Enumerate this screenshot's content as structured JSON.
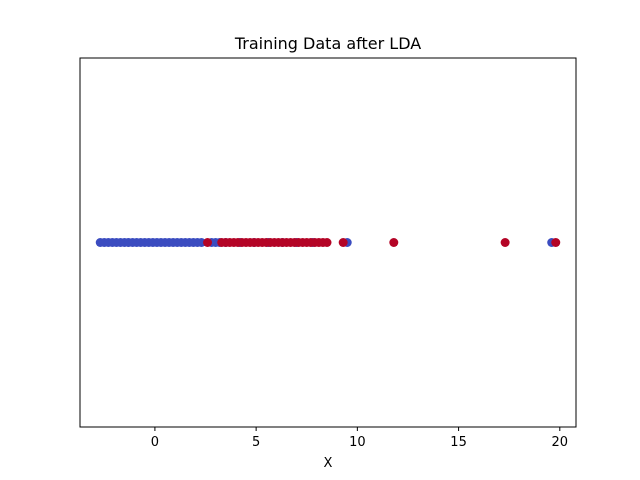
{
  "chart_data": {
    "type": "scatter",
    "title": "Training Data after LDA",
    "xlabel": "X",
    "ylabel": "",
    "xlim": [
      -3.7,
      20.8
    ],
    "ylim": [
      -1,
      1
    ],
    "x_ticks": [
      0,
      5,
      10,
      15,
      20
    ],
    "x_tick_labels": [
      "0",
      "5",
      "10",
      "15",
      "20"
    ],
    "y_ticks_visible": false,
    "grid": false,
    "legend": "none",
    "series": [
      {
        "color": "#3b4cc0",
        "x": [
          -2.7,
          -2.5,
          -2.3,
          -2.1,
          -1.9,
          -1.7,
          -1.5,
          -1.3,
          -1.1,
          -0.9,
          -0.7,
          -0.5,
          -0.3,
          -0.1,
          0.1,
          0.3,
          0.5,
          0.7,
          0.9,
          1.1,
          1.3,
          1.5,
          1.7,
          1.9,
          2.1,
          2.3,
          2.8,
          3.0,
          3.2,
          3.5,
          4.2,
          4.9,
          5.6,
          6.3,
          7.0,
          7.8,
          9.5,
          19.6
        ],
        "y": [
          0,
          0,
          0,
          0,
          0,
          0,
          0,
          0,
          0,
          0,
          0,
          0,
          0,
          0,
          0,
          0,
          0,
          0,
          0,
          0,
          0,
          0,
          0,
          0,
          0,
          0,
          0,
          0,
          0,
          0,
          0,
          0,
          0,
          0,
          0,
          0,
          0,
          0
        ]
      },
      {
        "color": "#b40426",
        "x": [
          2.6,
          3.3,
          3.5,
          3.7,
          3.9,
          4.1,
          4.3,
          4.5,
          4.7,
          4.9,
          5.1,
          5.3,
          5.5,
          5.7,
          5.9,
          6.1,
          6.3,
          6.5,
          6.7,
          6.9,
          7.1,
          7.3,
          7.5,
          7.7,
          7.9,
          8.1,
          8.3,
          8.5,
          9.3,
          11.8,
          17.3,
          19.8
        ],
        "y": [
          0,
          0,
          0,
          0,
          0,
          0,
          0,
          0,
          0,
          0,
          0,
          0,
          0,
          0,
          0,
          0,
          0,
          0,
          0,
          0,
          0,
          0,
          0,
          0,
          0,
          0,
          0,
          0,
          0,
          0,
          0,
          0
        ]
      }
    ]
  }
}
